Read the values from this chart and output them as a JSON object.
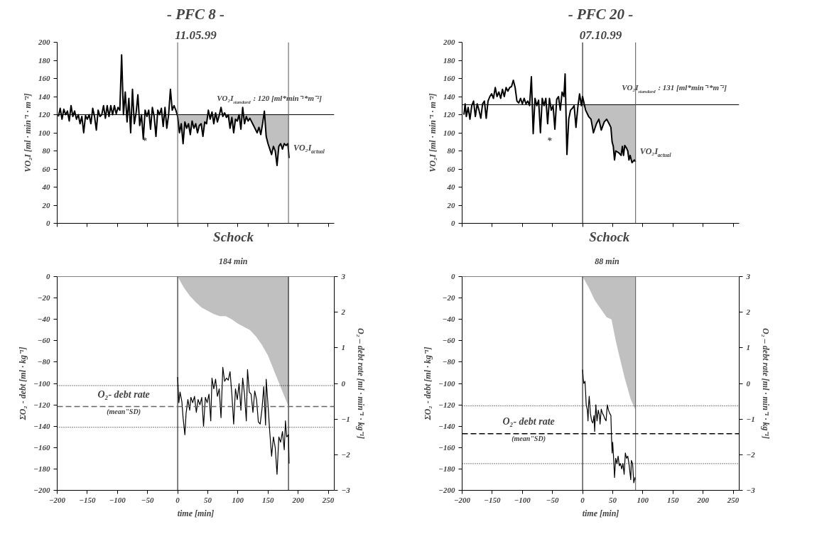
{
  "chart_data": [
    {
      "type": "line",
      "title": "- PFC 8 -",
      "subtitle": "11.05.99",
      "ylabel": "VO₂I [ml · min⁻¹ · m⁻²]",
      "xlim": [
        -200,
        260
      ],
      "xticks": [
        -200,
        -150,
        -100,
        -50,
        0,
        50,
        100,
        150,
        200,
        250
      ],
      "ylim": [
        0,
        200
      ],
      "yticks": [
        0,
        20,
        40,
        60,
        80,
        100,
        120,
        140,
        160,
        180,
        200
      ],
      "tick_labels": "y",
      "grid": false,
      "marker": "none",
      "line_style": "solid",
      "series": [
        {
          "name": "VO₂I$_{actual}$",
          "color": "#000000",
          "x": [
            -198,
            -195,
            -192,
            -189,
            -186,
            -183,
            -180,
            -177,
            -174,
            -171,
            -168,
            -165,
            -162,
            -159,
            -156,
            -153,
            -150,
            -147,
            -144,
            -141,
            -138,
            -135,
            -132,
            -129,
            -126,
            -123,
            -120,
            -117,
            -114,
            -111,
            -108,
            -105,
            -102,
            -99,
            -96,
            -93,
            -90,
            -87,
            -84,
            -81,
            -78,
            -75,
            -72,
            -69,
            -66,
            -63,
            -60,
            -57,
            -54,
            -51,
            -48,
            -45,
            -42,
            -39,
            -36,
            -33,
            -30,
            -27,
            -24,
            -21,
            -18,
            -15,
            -12,
            -9,
            -6,
            -3,
            0,
            3,
            6,
            9,
            12,
            15,
            18,
            21,
            24,
            27,
            30,
            33,
            36,
            39,
            42,
            45,
            48,
            51,
            54,
            57,
            60,
            63,
            66,
            69,
            72,
            75,
            78,
            81,
            84,
            87,
            90,
            93,
            96,
            99,
            102,
            105,
            108,
            111,
            114,
            117,
            120,
            123,
            126,
            129,
            132,
            135,
            138,
            141,
            144,
            147,
            150,
            153,
            156,
            159,
            162,
            165,
            168,
            171,
            174,
            177,
            180,
            183,
            185
          ],
          "values": [
            118,
            127,
            115,
            126,
            120,
            124,
            113,
            130,
            118,
            124,
            115,
            120,
            110,
            118,
            100,
            119,
            115,
            120,
            110,
            127,
            118,
            103,
            125,
            118,
            120,
            130,
            116,
            130,
            118,
            130,
            120,
            130,
            121,
            128,
            125,
            186,
            120,
            145,
            112,
            138,
            100,
            148,
            110,
            122,
            142,
            108,
            120,
            93,
            125,
            118,
            125,
            104,
            128,
            118,
            96,
            125,
            120,
            127,
            107,
            128,
            105,
            120,
            148,
            125,
            130,
            125,
            118,
            100,
            110,
            88,
            112,
            105,
            110,
            98,
            113,
            105,
            110,
            100,
            108,
            110,
            96,
            112,
            110,
            125,
            115,
            123,
            110,
            122,
            112,
            119,
            128,
            118,
            122,
            117,
            120,
            105,
            117,
            100,
            115,
            113,
            120,
            104,
            128,
            110,
            118,
            113,
            116,
            112,
            108,
            104,
            100,
            106,
            98,
            110,
            124,
            96,
            88,
            82,
            76,
            85,
            80,
            64,
            85,
            88,
            82,
            88,
            86,
            88,
            72
          ],
          "lower": [
            null,
            null,
            null,
            null,
            null,
            null,
            null,
            null,
            null,
            null,
            null,
            null,
            null,
            null,
            null,
            null,
            null,
            null,
            null,
            null,
            null,
            null,
            null,
            null,
            null,
            null,
            null,
            null,
            null,
            null,
            null,
            null,
            null,
            null,
            null,
            null,
            null,
            null,
            null,
            null,
            null,
            null,
            null,
            null,
            null,
            null,
            null,
            null,
            null,
            null,
            null,
            null,
            null,
            null,
            null,
            null,
            null,
            null,
            null,
            null,
            null,
            null,
            null,
            null,
            null,
            null,
            118,
            100,
            110,
            88,
            112,
            105,
            110,
            98,
            113,
            105,
            110,
            100,
            108,
            110,
            96,
            112,
            110,
            120,
            115,
            120,
            110,
            120,
            112,
            119,
            120,
            118,
            120,
            117,
            120,
            105,
            117,
            100,
            115,
            113,
            120,
            104,
            120,
            110,
            118,
            113,
            116,
            112,
            108,
            104,
            100,
            106,
            98,
            110,
            120,
            96,
            88,
            82,
            76,
            85,
            80,
            64,
            85,
            88,
            82,
            88,
            86,
            88,
            72
          ],
          "upper": [
            null,
            null,
            null,
            null,
            null,
            null,
            null,
            null,
            null,
            null,
            null,
            null,
            null,
            null,
            null,
            null,
            null,
            null,
            null,
            null,
            null,
            null,
            null,
            null,
            null,
            null,
            null,
            null,
            null,
            null,
            null,
            null,
            null,
            null,
            null,
            null,
            null,
            null,
            null,
            null,
            null,
            null,
            null,
            null,
            null,
            null,
            null,
            null,
            null,
            null,
            null,
            null,
            null,
            null,
            null,
            null,
            null,
            null,
            null,
            null,
            null,
            null,
            null,
            null,
            null,
            null,
            120,
            120,
            120,
            120,
            120,
            120,
            120,
            120,
            120,
            120,
            120,
            120,
            120,
            120,
            120,
            120,
            120,
            120,
            120,
            120,
            120,
            120,
            120,
            120,
            120,
            120,
            120,
            120,
            120,
            120,
            120,
            120,
            120,
            120,
            120,
            120,
            120,
            120,
            120,
            120,
            120,
            120,
            120,
            120,
            120,
            120,
            120,
            120,
            120,
            120,
            120,
            120,
            120,
            120,
            120,
            120,
            120,
            120,
            120,
            120,
            120,
            120,
            120
          ]
        }
      ],
      "ref_lines": [
        {
          "axis": "y",
          "value": 120,
          "label": "VO₂I$_{standard}$ : 120 [ml*min⁻¹*m⁻²]",
          "color": "#000000",
          "line_style": "solid"
        },
        {
          "axis": "x",
          "value": 0,
          "color": "#555555",
          "line_style": "solid"
        },
        {
          "axis": "x",
          "value": 184,
          "color": "#555555",
          "line_style": "solid"
        }
      ],
      "annotations": [
        "*"
      ]
    },
    {
      "type": "line",
      "title": "- PFC 20 -",
      "subtitle": "07.10.99",
      "ylabel": "VO₂I [ml · min⁻¹ · m⁻²]",
      "xlim": [
        -200,
        260
      ],
      "xticks": [
        -200,
        -150,
        -100,
        -50,
        0,
        50,
        100,
        150,
        200,
        250
      ],
      "ylim": [
        0,
        200
      ],
      "yticks": [
        0,
        20,
        40,
        60,
        80,
        100,
        120,
        140,
        160,
        180,
        200
      ],
      "tick_labels": "y",
      "grid": false,
      "marker": "none",
      "line_style": "solid",
      "series": [
        {
          "name": "VO₂I$_{actual}$",
          "color": "#000000",
          "x": [
            -197,
            -195,
            -193,
            -190,
            -187,
            -184,
            -181,
            -178,
            -175,
            -172,
            -169,
            -166,
            -163,
            -160,
            -157,
            -154,
            -151,
            -148,
            -145,
            -142,
            -139,
            -136,
            -133,
            -130,
            -127,
            -124,
            -121,
            -118,
            -115,
            -112,
            -109,
            -106,
            -103,
            -100,
            -97,
            -94,
            -91,
            -88,
            -85,
            -82,
            -79,
            -76,
            -73,
            -70,
            -67,
            -64,
            -61,
            -58,
            -55,
            -52,
            -49,
            -46,
            -43,
            -40,
            -37,
            -34,
            -31,
            -29,
            -26,
            -23,
            -20,
            -17,
            -14,
            -11,
            -8,
            -5,
            -2,
            0,
            5,
            10,
            14,
            18,
            23,
            27,
            31,
            36,
            40,
            44,
            47,
            49,
            51,
            53,
            55,
            60,
            64,
            66,
            68,
            70,
            73,
            75,
            77,
            79,
            82,
            86,
            88
          ],
          "values": [
            120,
            132,
            118,
            128,
            115,
            130,
            135,
            118,
            132,
            125,
            116,
            132,
            135,
            116,
            135,
            140,
            143,
            138,
            150,
            140,
            145,
            138,
            148,
            140,
            150,
            146,
            150,
            151,
            158,
            150,
            135,
            133,
            138,
            132,
            138,
            132,
            135,
            130,
            162,
            99,
            138,
            130,
            136,
            100,
            138,
            130,
            138,
            110,
            138,
            125,
            130,
            104,
            137,
            140,
            125,
            145,
            140,
            165,
            76,
            115,
            125,
            127,
            130,
            106,
            128,
            143,
            130,
            140,
            125,
            118,
            115,
            100,
            110,
            115,
            103,
            112,
            115,
            110,
            106,
            90,
            85,
            70,
            80,
            78,
            75,
            85,
            75,
            86,
            83,
            80,
            70,
            75,
            67,
            70,
            68
          ],
          "lower": [
            null,
            null,
            null,
            null,
            null,
            null,
            null,
            null,
            null,
            null,
            null,
            null,
            null,
            null,
            null,
            null,
            null,
            null,
            null,
            null,
            null,
            null,
            null,
            null,
            null,
            null,
            null,
            null,
            null,
            null,
            null,
            null,
            null,
            null,
            null,
            null,
            null,
            null,
            null,
            null,
            null,
            null,
            null,
            null,
            null,
            null,
            null,
            null,
            null,
            null,
            null,
            null,
            null,
            null,
            null,
            null,
            null,
            null,
            null,
            null,
            null,
            null,
            null,
            null,
            null,
            null,
            null,
            131,
            125,
            118,
            115,
            100,
            110,
            115,
            103,
            112,
            115,
            110,
            106,
            90,
            85,
            70,
            80,
            78,
            75,
            85,
            75,
            86,
            83,
            80,
            70,
            75,
            67,
            70,
            68
          ],
          "upper": [
            null,
            null,
            null,
            null,
            null,
            null,
            null,
            null,
            null,
            null,
            null,
            null,
            null,
            null,
            null,
            null,
            null,
            null,
            null,
            null,
            null,
            null,
            null,
            null,
            null,
            null,
            null,
            null,
            null,
            null,
            null,
            null,
            null,
            null,
            null,
            null,
            null,
            null,
            null,
            null,
            null,
            null,
            null,
            null,
            null,
            null,
            null,
            null,
            null,
            null,
            null,
            null,
            null,
            null,
            null,
            null,
            null,
            null,
            null,
            null,
            null,
            null,
            null,
            null,
            null,
            null,
            null,
            131,
            131,
            131,
            131,
            131,
            131,
            131,
            131,
            131,
            131,
            131,
            131,
            131,
            131,
            131,
            131,
            131,
            131,
            131,
            131,
            131,
            131,
            131,
            131,
            131,
            131,
            131,
            131
          ]
        }
      ],
      "ref_lines": [
        {
          "axis": "y",
          "value": 131,
          "label": "VO₂I$_{standard}$ : 131 [ml*min⁻¹*m⁻²]",
          "color": "#000000",
          "line_style": "solid"
        },
        {
          "axis": "x",
          "value": 0,
          "color": "#000000",
          "line_style": "solid"
        },
        {
          "axis": "x",
          "value": 88,
          "color": "#555555",
          "line_style": "solid"
        }
      ],
      "annotations": [
        "*"
      ]
    },
    {
      "type": "area",
      "xlabel": "time [min]",
      "ylabel": "ΣO₂ - debt [ml · kg⁻¹]",
      "y2label": "O₂ – debt rate [ml · min⁻¹ · kg⁻¹]",
      "xlim": [
        -200,
        260
      ],
      "xticks": [
        -200,
        -150,
        -100,
        -50,
        0,
        50,
        100,
        150,
        200,
        250
      ],
      "ylim": [
        -200,
        0
      ],
      "yticks": [
        -200,
        -180,
        -160,
        -140,
        -120,
        -100,
        -80,
        -60,
        -40,
        -20,
        0
      ],
      "y2lim": [
        -3,
        3
      ],
      "y2ticks": [
        -3,
        -2,
        -1,
        0,
        1,
        2,
        3
      ],
      "grid": false,
      "marker": "none",
      "line_style": "solid",
      "series": [
        {
          "type": "area",
          "color": "#c0c0c0",
          "x": [
            0,
            10,
            20,
            30,
            40,
            50,
            60,
            70,
            80,
            90,
            100,
            110,
            120,
            130,
            140,
            150,
            160,
            170,
            180,
            184
          ],
          "values": [
            0,
            -10,
            -18,
            -24,
            -29,
            -32,
            -35,
            -37,
            -37,
            -40,
            -44,
            -47,
            -50,
            -56,
            -64,
            -74,
            -88,
            -102,
            -116,
            -121
          ]
        },
        {
          "type": "line",
          "axis": "y2",
          "color": "#000000",
          "x": [
            0,
            2,
            4,
            7,
            9,
            12,
            14,
            17,
            20,
            22,
            25,
            28,
            31,
            34,
            37,
            40,
            43,
            46,
            49,
            52,
            55,
            57,
            60,
            63,
            66,
            69,
            72,
            75,
            78,
            81,
            84,
            87,
            90,
            93,
            96,
            99,
            102,
            105,
            108,
            111,
            114,
            116,
            119,
            122,
            125,
            128,
            131,
            134,
            137,
            140,
            143,
            146,
            147,
            150,
            153,
            156,
            159,
            162,
            165,
            168,
            171,
            174,
            177,
            179,
            181,
            184,
            185
          ],
          "values": [
            0.18,
            -0.54,
            -0.24,
            -0.51,
            -0.96,
            -1.44,
            -0.84,
            -0.45,
            -0.75,
            -0.39,
            -0.54,
            -0.36,
            -0.81,
            -0.45,
            -0.6,
            -0.39,
            -1.2,
            -0.39,
            -0.54,
            -0.3,
            -1.05,
            0.15,
            -0.15,
            0.12,
            -0.36,
            -0.15,
            -0.96,
            0.45,
            0.06,
            0.15,
            0.09,
            0.33,
            -0.3,
            -1.14,
            -0.15,
            -0.45,
            0,
            -0.75,
            0.15,
            -0.3,
            -1.05,
            0.39,
            -0.24,
            -0.3,
            -0.81,
            -0.21,
            -0.45,
            -1.08,
            -1.14,
            -0.72,
            -0.09,
            -1.17,
            0.12,
            -0.6,
            -1.38,
            -2.04,
            -1.5,
            -1.8,
            -2.55,
            -1.5,
            -1.65,
            -1.35,
            -1.86,
            -1.05,
            -1.5,
            -1.44,
            -2.25
          ]
        }
      ],
      "ref_lines": [
        {
          "axis": "y",
          "value": 0,
          "color": "#000000",
          "line_style": "solid"
        },
        {
          "axis": "x",
          "value": 0,
          "color": "#000000",
          "line_style": "solid"
        },
        {
          "axis": "x",
          "value": 184,
          "color": "#000000",
          "line_style": "solid"
        },
        {
          "axis": "y2",
          "value": -0.65,
          "color": "#666666",
          "line_style": "dashed"
        },
        {
          "axis": "y2",
          "value": -0.06,
          "color": "#000000",
          "line_style": "dotted"
        },
        {
          "axis": "y2",
          "value": -1.23,
          "color": "#000000",
          "line_style": "dotted"
        }
      ],
      "annotations": [
        "Schock",
        "184 min",
        "O₂- debt rate",
        "(mean\"SD)"
      ]
    },
    {
      "type": "area",
      "xlabel": "time [min]",
      "ylabel": "ΣO₂ - debt [ml · kg⁻¹]",
      "y2label": "O₂ – debt rate [ml · min⁻¹ · kg⁻¹]",
      "xlim": [
        -200,
        260
      ],
      "xticks": [
        -200,
        -150,
        -100,
        -50,
        0,
        50,
        100,
        150,
        200,
        250
      ],
      "ylim": [
        -200,
        0
      ],
      "yticks": [
        -200,
        -180,
        -160,
        -140,
        -120,
        -100,
        -80,
        -60,
        -40,
        -20,
        0
      ],
      "y2lim": [
        -3,
        3
      ],
      "y2ticks": [
        -3,
        -2,
        -1,
        0,
        1,
        2,
        3
      ],
      "grid": false,
      "marker": "none",
      "line_style": "solid",
      "series": [
        {
          "type": "area",
          "color": "#c0c0c0",
          "x": [
            0,
            10,
            20,
            30,
            40,
            48,
            55,
            60,
            70,
            80,
            88
          ],
          "values": [
            0,
            -10,
            -22,
            -30,
            -38,
            -40,
            -60,
            -72,
            -95,
            -115,
            -125
          ]
        },
        {
          "type": "line",
          "axis": "y2",
          "color": "#000000",
          "x": [
            0,
            1,
            2,
            4,
            5,
            6,
            8,
            9,
            10,
            11,
            13,
            15,
            17,
            19,
            20,
            22,
            24,
            26,
            28,
            29,
            31,
            33,
            35,
            37,
            39,
            41,
            43,
            45,
            47,
            48,
            49,
            50,
            52,
            53,
            55,
            57,
            59,
            61,
            63,
            65,
            67,
            69,
            71,
            73,
            75,
            77,
            79,
            80,
            81,
            83,
            85,
            87,
            88
          ],
          "values": [
            0.39,
            0.15,
            0,
            0.06,
            -0.24,
            -0.6,
            -0.75,
            -1.05,
            -0.6,
            -0.36,
            -0.84,
            -1.05,
            -1.11,
            -0.9,
            -1.35,
            -0.6,
            -1.05,
            -0.75,
            -0.9,
            -1.14,
            -0.72,
            -0.84,
            -0.9,
            -0.99,
            -1.05,
            -0.6,
            -0.75,
            -0.84,
            -0.9,
            -1.5,
            -1.95,
            -1.65,
            -2.25,
            -2.64,
            -2.1,
            -2.25,
            -2.04,
            -2.31,
            -2.25,
            -2.4,
            -2.25,
            -2.55,
            -1.95,
            -2.1,
            -2.04,
            -2.25,
            -2.55,
            -2.7,
            -2.16,
            -2.25,
            -2.79,
            -2.64,
            -2.7
          ]
        }
      ],
      "ref_lines": [
        {
          "axis": "y",
          "value": 0,
          "color": "#000000",
          "line_style": "solid"
        },
        {
          "axis": "x",
          "value": 0,
          "color": "#000000",
          "line_style": "solid"
        },
        {
          "axis": "x",
          "value": 88,
          "color": "#555555",
          "line_style": "solid"
        },
        {
          "axis": "y2",
          "value": -1.41,
          "color": "#000000",
          "line_style": "dashed"
        },
        {
          "axis": "y2",
          "value": -0.63,
          "color": "#000000",
          "line_style": "dotted"
        },
        {
          "axis": "y2",
          "value": -2.25,
          "color": "#000000",
          "line_style": "dotted"
        }
      ],
      "annotations": [
        "Schock",
        "88 min",
        "O₂- debt rate",
        "(mean\"SD)"
      ]
    }
  ]
}
